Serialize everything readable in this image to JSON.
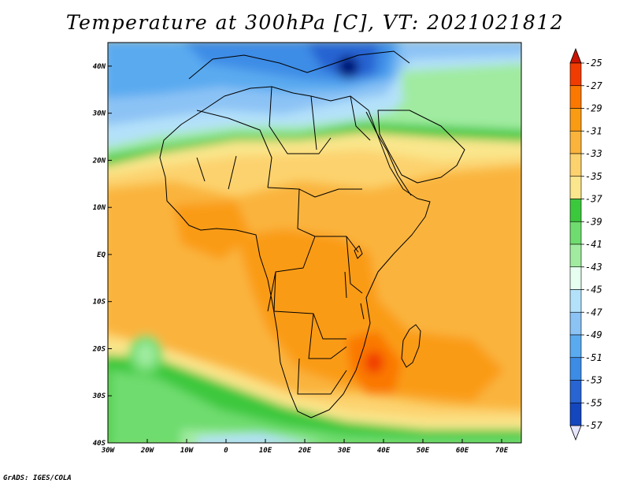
{
  "title": "Temperature at 300hPa [C], VT: 2021021812",
  "credit": "GrADS: IGES/COLA",
  "map": {
    "lon_range": [
      -30,
      75
    ],
    "lat_range": [
      -40,
      45
    ],
    "x_ticks": [
      {
        "lon": -30,
        "label": "30W"
      },
      {
        "lon": -20,
        "label": "20W"
      },
      {
        "lon": -10,
        "label": "10W"
      },
      {
        "lon": 0,
        "label": "0"
      },
      {
        "lon": 10,
        "label": "10E"
      },
      {
        "lon": 20,
        "label": "20E"
      },
      {
        "lon": 30,
        "label": "30E"
      },
      {
        "lon": 40,
        "label": "40E"
      },
      {
        "lon": 50,
        "label": "50E"
      },
      {
        "lon": 60,
        "label": "60E"
      },
      {
        "lon": 70,
        "label": "70E"
      }
    ],
    "y_ticks": [
      {
        "lat": 40,
        "label": "40N"
      },
      {
        "lat": 30,
        "label": "30N"
      },
      {
        "lat": 20,
        "label": "20N"
      },
      {
        "lat": 10,
        "label": "10N"
      },
      {
        "lat": 0,
        "label": "EQ"
      },
      {
        "lat": -10,
        "label": "10S"
      },
      {
        "lat": -20,
        "label": "20S"
      },
      {
        "lat": -30,
        "label": "30S"
      },
      {
        "lat": -40,
        "label": "40S"
      }
    ]
  },
  "legend": {
    "labels": [
      "-25",
      "-27",
      "-29",
      "-31",
      "-33",
      "-35",
      "-37",
      "-39",
      "-41",
      "-43",
      "-45",
      "-47",
      "-49",
      "-51",
      "-53",
      "-55",
      "-57"
    ],
    "colors": [
      "#f03c00",
      "#fa7800",
      "#fa9b14",
      "#fab43c",
      "#fcd26e",
      "#fae68c",
      "#3cc83c",
      "#6edc6e",
      "#a0eba0",
      "#e6fff0",
      "#b4e1fa",
      "#8cc3f5",
      "#5aaaf0",
      "#3c8ce6",
      "#2864d2",
      "#1446be",
      "#001478"
    ],
    "top_cap_color": "#c81400",
    "bottom_cap_color": "#e6e6ff"
  }
}
